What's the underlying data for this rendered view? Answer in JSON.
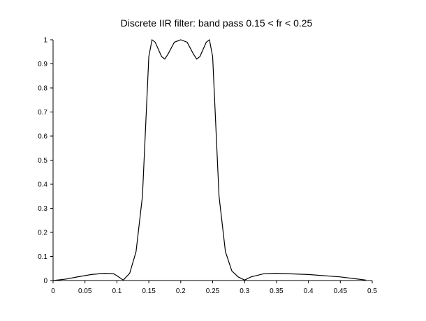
{
  "chart_data": {
    "type": "line",
    "title": "Discrete IIR filter: band pass  0.15 < fr < 0.25",
    "xlim": [
      0,
      0.5
    ],
    "xticks": [
      0,
      0.05,
      0.1,
      0.15,
      0.2,
      0.25,
      0.3,
      0.35,
      0.4,
      0.45,
      0.5
    ],
    "ylim": [
      0,
      1
    ],
    "yticks": [
      0,
      0.1,
      0.2,
      0.3,
      0.4,
      0.5,
      0.6,
      0.7,
      0.8,
      0.9,
      1
    ],
    "x": [
      0,
      0.02,
      0.04,
      0.06,
      0.08,
      0.095,
      0.1,
      0.11,
      0.12,
      0.13,
      0.14,
      0.15,
      0.155,
      0.16,
      0.17,
      0.175,
      0.18,
      0.19,
      0.2,
      0.21,
      0.22,
      0.225,
      0.23,
      0.24,
      0.245,
      0.25,
      0.26,
      0.27,
      0.28,
      0.29,
      0.3,
      0.31,
      0.33,
      0.35,
      0.4,
      0.45,
      0.49
    ],
    "series": [
      {
        "color": "#000000",
        "values": [
          0,
          0.006,
          0.016,
          0.025,
          0.03,
          0.028,
          0.02,
          0.002,
          0.03,
          0.12,
          0.35,
          0.93,
          1.0,
          0.99,
          0.93,
          0.92,
          0.94,
          0.99,
          1.0,
          0.99,
          0.94,
          0.92,
          0.93,
          0.99,
          1.0,
          0.93,
          0.35,
          0.12,
          0.04,
          0.015,
          0.002,
          0.015,
          0.028,
          0.03,
          0.025,
          0.015,
          0.002
        ]
      }
    ]
  }
}
